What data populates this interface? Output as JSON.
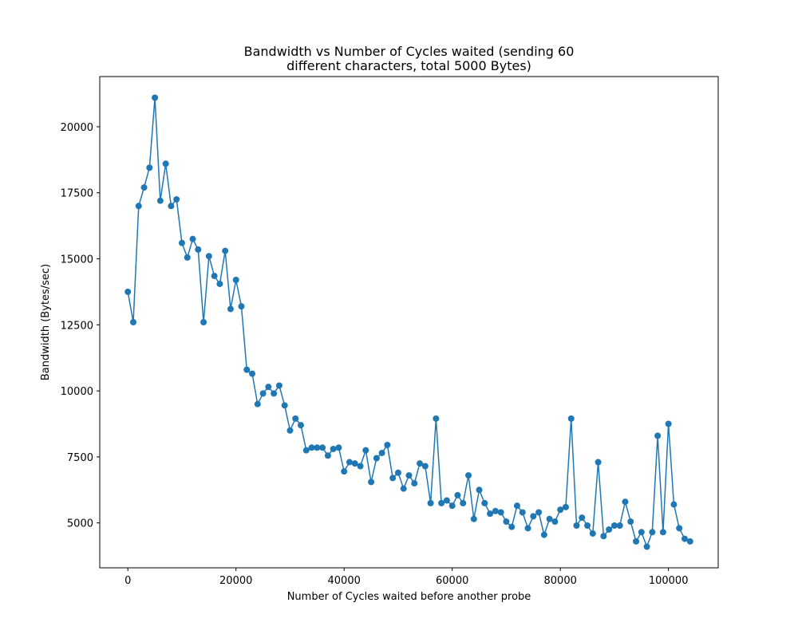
{
  "chart_data": {
    "type": "line",
    "title_lines": [
      "Bandwidth vs Number of Cycles waited (sending 60",
      "different characters, total 5000 Bytes)"
    ],
    "xlabel": "Number of Cycles waited before another probe",
    "ylabel": "Bandwidth (Bytes/sec)",
    "xlim": [
      -5200,
      109200
    ],
    "ylim": [
      3300,
      21900
    ],
    "xticks": [
      0,
      20000,
      40000,
      60000,
      80000,
      100000
    ],
    "yticks": [
      5000,
      7500,
      10000,
      12500,
      15000,
      17500,
      20000
    ],
    "grid": false,
    "markers": true,
    "color": "#1f77b4",
    "series": [
      {
        "x": [
          0,
          1000,
          2000,
          3000,
          4000,
          5000,
          6000,
          7000,
          8000,
          9000,
          10000,
          11000,
          12000,
          13000,
          14000,
          15000,
          16000,
          17000,
          18000,
          19000,
          20000,
          21000,
          22000,
          23000,
          24000,
          25000,
          26000,
          27000,
          28000,
          29000,
          30000,
          31000,
          32000,
          33000,
          34000,
          35000,
          36000,
          37000,
          38000,
          39000,
          40000,
          41000,
          42000,
          43000,
          44000,
          45000,
          46000,
          47000,
          48000,
          49000,
          50000,
          51000,
          52000,
          53000,
          54000,
          55000,
          56000,
          57000,
          58000,
          59000,
          60000,
          61000,
          62000,
          63000,
          64000,
          65000,
          66000,
          67000,
          68000,
          69000,
          70000,
          71000,
          72000,
          73000,
          74000,
          75000,
          76000,
          77000,
          78000,
          79000,
          80000,
          81000,
          82000,
          83000,
          84000,
          85000,
          86000,
          87000,
          88000,
          89000,
          90000,
          91000,
          92000,
          93000,
          94000,
          95000,
          96000,
          97000,
          98000,
          99000,
          100000,
          101000,
          102000,
          103000,
          104000
        ],
        "y": [
          13750,
          12600,
          17000,
          17700,
          18450,
          21100,
          17200,
          18600,
          17000,
          17250,
          15600,
          15050,
          15750,
          15350,
          12600,
          15100,
          14350,
          14050,
          15300,
          13100,
          14200,
          13200,
          10800,
          10650,
          9500,
          9900,
          10150,
          9900,
          10200,
          9450,
          8500,
          8950,
          8700,
          7750,
          7850,
          7850,
          7850,
          7550,
          7800,
          7850,
          6950,
          7300,
          7250,
          7150,
          7750,
          6550,
          7450,
          7650,
          7950,
          6700,
          6900,
          6300,
          6800,
          6500,
          7250,
          7150,
          5750,
          8950,
          5750,
          5850,
          5650,
          6050,
          5750,
          6800,
          5150,
          6250,
          5750,
          5350,
          5450,
          5400,
          5050,
          4850,
          5650,
          5400,
          4800,
          5250,
          5400,
          4550,
          5150,
          5050,
          5500,
          5600,
          8950,
          4900,
          5200,
          4900,
          4600,
          7300,
          4500,
          4750,
          4900,
          4900,
          5800,
          5050,
          4300,
          4650,
          4100,
          4650,
          8300,
          4650,
          8750,
          5700,
          4800,
          4400,
          4300
        ]
      }
    ]
  }
}
